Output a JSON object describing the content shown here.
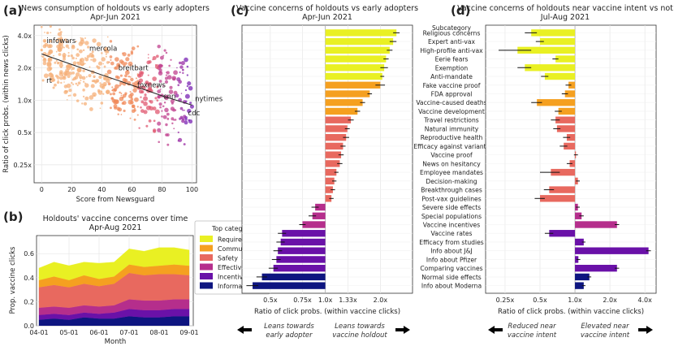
{
  "figure": {
    "colors": {
      "Requirements": "#e9f023",
      "Community": "#f5a020",
      "Safety": "#e8695f",
      "Effectiveness": "#b52e8c",
      "Incentives": "#6a11a8",
      "Information": "#0e1580"
    },
    "legend": {
      "title": "Top category",
      "items": [
        "Requirements",
        "Community",
        "Safety",
        "Effectiveness",
        "Incentives",
        "Information"
      ]
    },
    "panel_c_notes": {
      "left": [
        "Leans towards",
        "early adopter"
      ],
      "right": [
        "Leans towards",
        "vaccine holdout"
      ]
    },
    "panel_d_notes": {
      "left": [
        "Reduced near",
        "vaccine intent"
      ],
      "right": [
        "Elevated near",
        "vaccine intent"
      ]
    }
  },
  "chart_data": [
    {
      "panel": "(a)",
      "type": "scatter",
      "title": [
        "News consumption of holdouts vs early adopters",
        "Apr-Jun 2021"
      ],
      "xlabel": "Score from Newsguard",
      "ylabel": "Ratio of click probs. (within news clicks)",
      "xlim": [
        -5,
        103
      ],
      "ylog": true,
      "ylim": [
        0.17,
        5.0
      ],
      "xticks": [
        0,
        20,
        40,
        60,
        80,
        100
      ],
      "yticks": [
        0.25,
        0.5,
        1.0,
        2.0,
        4.0
      ],
      "ytick_labels": [
        "0.25x",
        "0.5x",
        "1.0x",
        "2.0x",
        "4.0x"
      ],
      "annotations": [
        {
          "text": "infowars",
          "x": 13,
          "y": 3.4
        },
        {
          "text": "mercola",
          "x": 41,
          "y": 2.9
        },
        {
          "text": "breitbart",
          "x": 61,
          "y": 1.9
        },
        {
          "text": "rt",
          "x": 5,
          "y": 1.45
        },
        {
          "text": "foxnews",
          "x": 73,
          "y": 1.32
        },
        {
          "text": "cnn",
          "x": 85,
          "y": 1.03
        },
        {
          "text": "nytimes",
          "x": 102,
          "y": 0.98
        },
        {
          "text": "cdc",
          "x": 101,
          "y": 0.72
        }
      ],
      "trend_line": [
        [
          0,
          2.7
        ],
        [
          20,
          2.15
        ],
        [
          40,
          1.72
        ],
        [
          60,
          1.38
        ],
        [
          80,
          1.1
        ],
        [
          100,
          0.9
        ]
      ]
    },
    {
      "panel": "(b)",
      "type": "area",
      "title": [
        "Holdouts' vaccine concerns over time",
        "Apr-Aug 2021"
      ],
      "xlabel": "Month",
      "ylabel": "Prop. vaccine clicks",
      "xticks": [
        "04-01",
        "05-01",
        "06-01",
        "07-01",
        "08-01",
        "09-01"
      ],
      "yticks": [
        0.0,
        0.2,
        0.4,
        0.6
      ],
      "ylim": [
        0,
        0.75
      ],
      "x": [
        0,
        0.5,
        1,
        1.5,
        2,
        2.5,
        3,
        3.5,
        4,
        4.5,
        5
      ],
      "series": [
        {
          "name": "Information",
          "values": [
            0.05,
            0.06,
            0.05,
            0.07,
            0.06,
            0.06,
            0.08,
            0.07,
            0.07,
            0.08,
            0.08
          ]
        },
        {
          "name": "Incentives",
          "values": [
            0.04,
            0.04,
            0.04,
            0.04,
            0.04,
            0.05,
            0.06,
            0.06,
            0.06,
            0.06,
            0.06
          ]
        },
        {
          "name": "Effectiveness",
          "values": [
            0.06,
            0.06,
            0.06,
            0.06,
            0.06,
            0.06,
            0.08,
            0.08,
            0.08,
            0.08,
            0.08
          ]
        },
        {
          "name": "Safety",
          "values": [
            0.17,
            0.18,
            0.17,
            0.18,
            0.17,
            0.18,
            0.22,
            0.21,
            0.22,
            0.21,
            0.2
          ]
        },
        {
          "name": "Community",
          "values": [
            0.06,
            0.07,
            0.06,
            0.07,
            0.06,
            0.06,
            0.07,
            0.07,
            0.07,
            0.08,
            0.08
          ]
        },
        {
          "name": "Requirements",
          "values": [
            0.1,
            0.12,
            0.12,
            0.11,
            0.13,
            0.12,
            0.13,
            0.13,
            0.15,
            0.14,
            0.13
          ]
        }
      ]
    },
    {
      "panel": "(c)",
      "type": "bar",
      "orientation": "horizontal",
      "title": [
        "Vaccine concerns of holdouts vs early adopters",
        "Apr-Jun 2021"
      ],
      "xlabel": "Ratio of click probs. (within vaccine clicks)",
      "xlog": true,
      "xlim": [
        0.35,
        3.0
      ],
      "xticks": [
        0.5,
        0.75,
        1.0,
        1.33,
        2.0
      ],
      "xtick_labels": [
        "0.5x",
        "0.75x",
        "1.0x",
        "1.33x",
        "2.0x"
      ],
      "categories": [
        "Religious concerns",
        "Expert anti-vax",
        "High-profile anti-vax",
        "Eerie fears",
        "Exemption",
        "Anti-mandate",
        "Fake vaccine proof",
        "FDA approval",
        "Vaccine-caused deaths",
        "Vaccine development",
        "Travel restrictions",
        "Natural immunity",
        "Reproductive health",
        "Efficacy against variants",
        "Vaccine proof",
        "News on hesitancy",
        "Employee mandates",
        "Decision-making",
        "Breakthrough cases",
        "Post-vax guidelines",
        "Severe side effects",
        "Special populations",
        "Vaccine incentives",
        "Vaccine rates",
        "Efficacy from studies",
        "Info about J&J",
        "Info about Pfizer",
        "Comparing vaccines",
        "Normal side effects",
        "Info about Moderna"
      ],
      "values": [
        2.45,
        2.35,
        2.25,
        2.15,
        2.1,
        2.05,
        2.0,
        1.75,
        1.6,
        1.5,
        1.38,
        1.32,
        1.3,
        1.25,
        1.22,
        1.2,
        1.15,
        1.12,
        1.1,
        1.08,
        0.88,
        0.85,
        0.75,
        0.58,
        0.57,
        0.55,
        0.54,
        0.52,
        0.45,
        0.4
      ],
      "errors": [
        0.1,
        0.1,
        0.08,
        0.07,
        0.1,
        0.05,
        0.12,
        0.05,
        0.05,
        0.05,
        0.05,
        0.04,
        0.05,
        0.04,
        0.04,
        0.04,
        0.03,
        0.03,
        0.03,
        0.03,
        0.04,
        0.04,
        0.03,
        0.03,
        0.03,
        0.03,
        0.03,
        0.03,
        0.03,
        0.03
      ],
      "groups": [
        "Requirements",
        "Requirements",
        "Requirements",
        "Requirements",
        "Requirements",
        "Requirements",
        "Community",
        "Community",
        "Community",
        "Community",
        "Safety",
        "Safety",
        "Safety",
        "Safety",
        "Safety",
        "Safety",
        "Safety",
        "Safety",
        "Safety",
        "Safety",
        "Effectiveness",
        "Effectiveness",
        "Effectiveness",
        "Incentives",
        "Incentives",
        "Incentives",
        "Incentives",
        "Incentives",
        "Information",
        "Information"
      ]
    },
    {
      "panel": "(d)",
      "type": "bar",
      "orientation": "horizontal",
      "title": [
        "Vaccine concerns of holdouts near vaccine intent vs not",
        "Jul-Aug 2021"
      ],
      "legend_title": "Subcategory",
      "xlabel": "Ratio of click probs. (within vaccine clicks)",
      "xlog": true,
      "xlim": [
        0.17,
        5.0
      ],
      "xticks": [
        0.25,
        0.5,
        1.0,
        2.0,
        4.0
      ],
      "xtick_labels": [
        "0.25x",
        "0.5x",
        "1.0x",
        "2.0x",
        "4.0x"
      ],
      "categories": [
        "Religious concerns",
        "Expert anti-vax",
        "High-profile anti-vax",
        "Eerie fears",
        "Exemption",
        "Anti-mandate",
        "Fake vaccine proof",
        "FDA approval",
        "Vaccine-caused deaths",
        "Vaccine development",
        "Travel restrictions",
        "Natural immunity",
        "Reproductive health",
        "Efficacy against variants",
        "Vaccine proof",
        "News on hesitancy",
        "Employee mandates",
        "Decision-making",
        "Breakthrough cases",
        "Post-vax guidelines",
        "Severe side effects",
        "Special populations",
        "Vaccine incentives",
        "Vaccine rates",
        "Efficacy from studies",
        "Info about J&J",
        "Info about Pfizer",
        "Comparing vaccines",
        "Normal side effects",
        "Info about Moderna"
      ],
      "values": [
        0.42,
        0.5,
        0.32,
        0.68,
        0.37,
        0.55,
        0.88,
        0.82,
        0.47,
        0.72,
        0.68,
        0.7,
        0.85,
        0.8,
        1.02,
        0.9,
        0.62,
        1.06,
        0.6,
        0.5,
        1.06,
        1.14,
        2.3,
        0.6,
        1.19,
        4.3,
        1.07,
        2.3,
        1.33,
        1.19
      ],
      "errors": [
        0.05,
        0.04,
        0.1,
        0.04,
        0.05,
        0.04,
        0.05,
        0.05,
        0.05,
        0.05,
        0.06,
        0.05,
        0.06,
        0.06,
        0.04,
        0.05,
        0.12,
        0.04,
        0.06,
        0.05,
        0.04,
        0.05,
        0.1,
        0.05,
        0.04,
        0.2,
        0.04,
        0.1,
        0.05,
        0.04
      ],
      "groups": [
        "Requirements",
        "Requirements",
        "Requirements",
        "Requirements",
        "Requirements",
        "Requirements",
        "Community",
        "Community",
        "Community",
        "Community",
        "Safety",
        "Safety",
        "Safety",
        "Safety",
        "Safety",
        "Safety",
        "Safety",
        "Safety",
        "Safety",
        "Safety",
        "Effectiveness",
        "Effectiveness",
        "Effectiveness",
        "Incentives",
        "Incentives",
        "Incentives",
        "Incentives",
        "Incentives",
        "Information",
        "Information"
      ]
    }
  ]
}
